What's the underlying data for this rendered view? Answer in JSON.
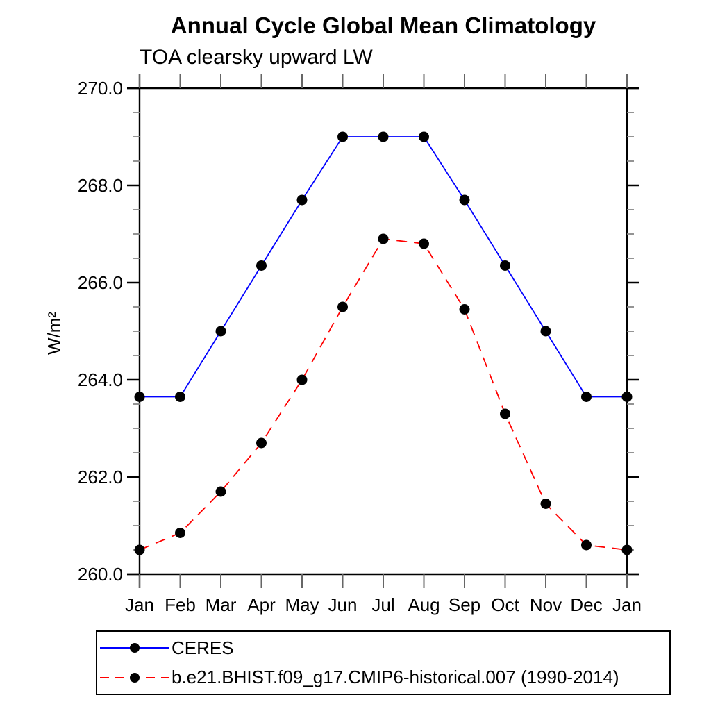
{
  "header": {
    "title": "Annual Cycle Global Mean Climatology",
    "subtitle": "TOA clearsky upward LW"
  },
  "chart_data": {
    "type": "line",
    "title": "Annual Cycle Global Mean Climatology",
    "subtitle": "TOA clearsky upward LW",
    "xlabel": "",
    "ylabel": "W/m²",
    "x_categories": [
      "Jan",
      "Feb",
      "Mar",
      "Apr",
      "May",
      "Jun",
      "Jul",
      "Aug",
      "Sep",
      "Oct",
      "Nov",
      "Dec",
      "Jan"
    ],
    "ylim": [
      260.0,
      270.0
    ],
    "ytick_major_values": [
      260.0,
      262.0,
      264.0,
      266.0,
      268.0,
      270.0
    ],
    "ytick_major_labels": [
      "260.0",
      "262.0",
      "264.0",
      "266.0",
      "268.0",
      "270.0"
    ],
    "ytick_minor_step": 0.5,
    "grid": false,
    "legend_position": "bottom-left",
    "axis_color": "#000000",
    "minor_tick_color": "#888888",
    "month_tick_color": "#666666",
    "marker": "filled-circle",
    "marker_color": "#000000",
    "series": [
      {
        "name": "CERES",
        "color": "#0000ff",
        "style": "solid",
        "values": [
          263.65,
          263.65,
          265.0,
          266.35,
          267.7,
          269.0,
          269.0,
          269.0,
          267.7,
          266.35,
          265.0,
          263.65,
          263.65
        ]
      },
      {
        "name": "b.e21.BHIST.f09_g17.CMIP6-historical.007 (1990-2014)",
        "color": "#ff0000",
        "style": "dashed",
        "values": [
          260.5,
          260.85,
          261.7,
          262.7,
          264.0,
          265.5,
          266.9,
          266.8,
          265.45,
          263.3,
          261.45,
          260.6,
          260.5
        ]
      }
    ]
  }
}
